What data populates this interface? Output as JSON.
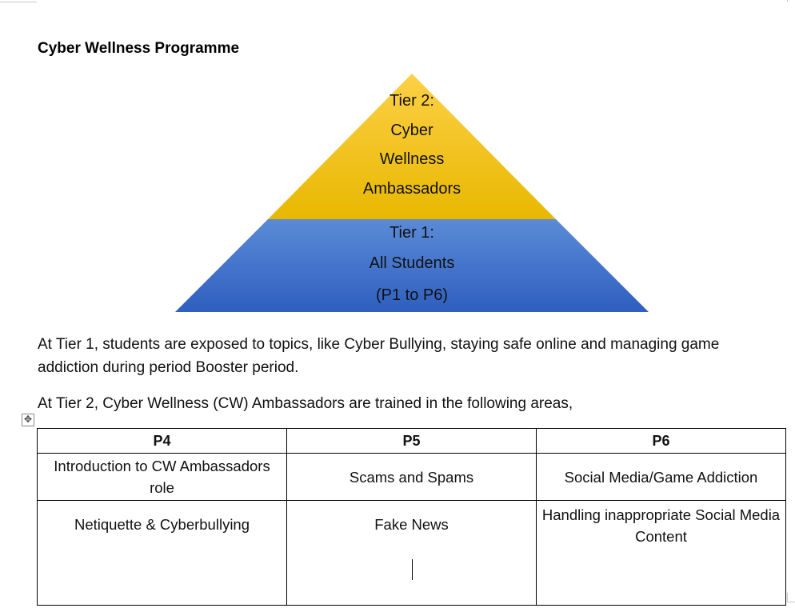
{
  "document": {
    "title": "Cyber Wellness Programme"
  },
  "pyramid": {
    "tier2": {
      "lines": [
        "Tier 2:",
        "Cyber",
        "Wellness",
        "Ambassadors"
      ],
      "color_top": "#fdd047",
      "color_bottom": "#e8b800"
    },
    "tier1": {
      "lines": [
        "Tier 1:",
        "All Students",
        "(P1 to P6)"
      ],
      "color_top": "#5b8bd6",
      "color_bottom": "#2f5fbf"
    }
  },
  "paragraphs": {
    "tier1_description": "At Tier 1, students are exposed to topics, like Cyber Bullying, staying safe online and managing game addiction during period Booster period.",
    "tier2_description": "At Tier 2, Cyber Wellness (CW) Ambassadors are trained in the following areas,"
  },
  "table": {
    "headers": [
      "P4",
      "P5",
      "P6"
    ],
    "rows": [
      [
        "Introduction to CW Ambassadors role",
        "Scams and Spams",
        "Social Media/Game Addiction"
      ],
      [
        "Netiquette & Cyberbullying",
        "Fake News",
        "Handling inappropriate Social Media Content"
      ]
    ]
  },
  "icons": {
    "table_move_handle": "move-arrows-icon"
  }
}
